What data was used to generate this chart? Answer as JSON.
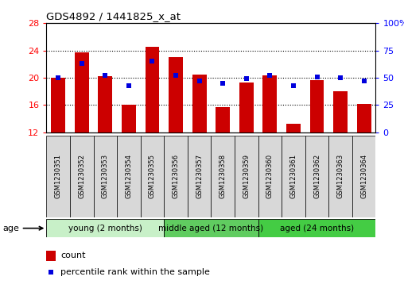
{
  "title": "GDS4892 / 1441825_x_at",
  "samples": [
    "GSM1230351",
    "GSM1230352",
    "GSM1230353",
    "GSM1230354",
    "GSM1230355",
    "GSM1230356",
    "GSM1230357",
    "GSM1230358",
    "GSM1230359",
    "GSM1230360",
    "GSM1230361",
    "GSM1230362",
    "GSM1230363",
    "GSM1230364"
  ],
  "counts": [
    20.0,
    23.7,
    20.2,
    16.1,
    24.5,
    23.0,
    20.5,
    15.7,
    19.3,
    20.3,
    13.3,
    19.6,
    18.0,
    16.2
  ],
  "percentiles": [
    50,
    63,
    52,
    43,
    65,
    52,
    47,
    45,
    49,
    52,
    43,
    51,
    50,
    47
  ],
  "ymin": 12,
  "ymax": 28,
  "yticks_left": [
    12,
    16,
    20,
    24,
    28
  ],
  "yticks_right": [
    0,
    25,
    50,
    75,
    100
  ],
  "bar_color": "#cc0000",
  "dot_color": "#0000dd",
  "groups": [
    {
      "label": "young (2 months)",
      "start": 0,
      "end": 5,
      "color": "#c8f0c8"
    },
    {
      "label": "middle aged (12 months)",
      "start": 5,
      "end": 9,
      "color": "#60cc60"
    },
    {
      "label": "aged (24 months)",
      "start": 9,
      "end": 14,
      "color": "#44cc44"
    }
  ],
  "sample_box_color": "#d8d8d8",
  "fig_width": 5.08,
  "fig_height": 3.63,
  "dpi": 100
}
